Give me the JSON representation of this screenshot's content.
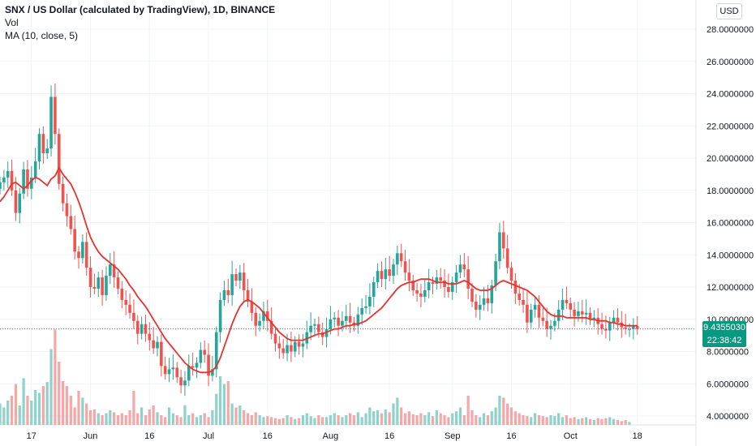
{
  "legend": {
    "symbol": "SNX / US Dollar (calculated by TradingView), 1D, BINANCE",
    "volume": "Vol",
    "ma": "MA (10, close, 5)"
  },
  "currency": "USD",
  "last_price": "9.4355030",
  "countdown": "22:38:42",
  "colors": {
    "up": "#26a69a",
    "down": "#ef5350",
    "vol_up": "#8fd2c9",
    "vol_down": "#f4a7a6",
    "ma": "#e8322e",
    "tag": "#089981"
  },
  "chart_data": {
    "type": "candlestick",
    "y_axis": {
      "ticks": [
        4,
        6,
        8,
        10,
        12,
        14,
        16,
        18,
        20,
        22,
        24,
        26,
        28
      ],
      "tick_labels": [
        "4.0000000",
        "6.0000000",
        "8.0000000",
        "10.0000000",
        "12.0000000",
        "14.0000000",
        "16.0000000",
        "18.0000000",
        "20.0000000",
        "22.0000000",
        "24.0000000",
        "26.0000000",
        "28.0000000"
      ],
      "range": [
        3.5,
        28.5
      ]
    },
    "x_axis": {
      "labels": [
        {
          "text": "17",
          "day": 8
        },
        {
          "text": "Jun",
          "day": 23
        },
        {
          "text": "16",
          "day": 38
        },
        {
          "text": "Jul",
          "day": 53
        },
        {
          "text": "16",
          "day": 68
        },
        {
          "text": "Aug",
          "day": 84
        },
        {
          "text": "16",
          "day": 99
        },
        {
          "text": "Sep",
          "day": 115
        },
        {
          "text": "16",
          "day": 130
        },
        {
          "text": "Oct",
          "day": 145
        },
        {
          "text": "18",
          "day": 162
        }
      ]
    },
    "close": [
      18.5,
      18.8,
      19.2,
      18.0,
      16.6,
      17.8,
      19.3,
      18.1,
      18.8,
      19.8,
      21.5,
      20.3,
      20.6,
      23.8,
      21.5,
      18.4,
      17.2,
      16.4,
      15.6,
      14.2,
      13.8,
      14.8,
      13.2,
      12.0,
      11.9,
      12.6,
      11.5,
      12.7,
      13.4,
      12.6,
      11.9,
      11.2,
      10.9,
      10.4,
      9.9,
      9.1,
      9.7,
      9.1,
      8.7,
      8.2,
      8.6,
      7.1,
      6.6,
      6.9,
      7.0,
      6.4,
      5.9,
      6.2,
      7.1,
      7.0,
      7.3,
      8.1,
      7.8,
      6.5,
      6.9,
      9.2,
      11.2,
      11.8,
      11.5,
      12.8,
      12.4,
      12.9,
      11.8,
      11.1,
      10.4,
      9.6,
      9.9,
      10.5,
      9.9,
      9.1,
      8.5,
      8.2,
      7.9,
      8.4,
      8.0,
      8.6,
      8.3,
      8.5,
      9.2,
      9.6,
      9.7,
      9.2,
      8.9,
      9.4,
      10.0,
      10.1,
      9.6,
      9.9,
      10.2,
      9.8,
      9.6,
      10.3,
      10.7,
      10.8,
      11.4,
      12.3,
      13.0,
      12.5,
      13.1,
      12.7,
      13.4,
      14.1,
      13.6,
      12.9,
      12.4,
      11.8,
      11.6,
      11.4,
      11.8,
      12.3,
      12.2,
      12.6,
      12.4,
      12.0,
      11.7,
      12.3,
      12.9,
      13.4,
      13.1,
      11.9,
      11.1,
      10.6,
      10.9,
      11.3,
      11.0,
      12.1,
      13.6,
      15.4,
      14.4,
      13.2,
      12.4,
      11.6,
      11.2,
      10.9,
      9.8,
      10.6,
      10.9,
      10.1,
      9.9,
      9.4,
      9.6,
      9.9,
      10.6,
      11.2,
      11.0,
      10.6,
      10.2,
      10.5,
      10.3,
      10.4,
      10.0,
      10.1,
      9.7,
      9.4,
      9.3,
      9.8,
      10.1,
      9.8,
      9.5,
      9.4,
      9.4,
      9.6,
      9.4
    ],
    "ma_values": [
      17.3,
      17.6,
      18.0,
      18.4,
      18.5,
      18.3,
      18.1,
      18.3,
      18.6,
      18.8,
      18.7,
      18.5,
      18.3,
      18.7,
      18.9,
      19.4,
      19.0,
      18.7,
      18.4,
      17.9,
      17.3,
      16.6,
      15.8,
      15.1,
      14.6,
      14.2,
      13.9,
      13.7,
      13.5,
      13.3,
      13.1,
      12.8,
      12.5,
      12.1,
      11.8,
      11.4,
      11.1,
      10.8,
      10.4,
      10.0,
      9.6,
      9.2,
      8.8,
      8.5,
      8.2,
      7.9,
      7.6,
      7.3,
      7.1,
      6.9,
      6.8,
      6.7,
      6.7,
      6.7,
      6.8,
      7.1,
      7.6,
      8.3,
      9.0,
      9.7,
      10.3,
      10.8,
      11.1,
      11.2,
      11.1,
      10.9,
      10.7,
      10.4,
      10.1,
      9.8,
      9.5,
      9.2,
      9.0,
      8.8,
      8.7,
      8.7,
      8.7,
      8.7,
      8.8,
      8.9,
      9.0,
      9.1,
      9.1,
      9.2,
      9.3,
      9.4,
      9.4,
      9.5,
      9.6,
      9.6,
      9.7,
      9.7,
      9.8,
      9.9,
      10.1,
      10.3,
      10.5,
      10.7,
      11.0,
      11.3,
      11.6,
      11.9,
      12.1,
      12.2,
      12.3,
      12.3,
      12.4,
      12.5,
      12.5,
      12.5,
      12.4,
      12.3,
      12.3,
      12.3,
      12.2,
      12.2,
      12.2,
      12.3,
      12.4,
      12.3,
      12.1,
      11.9,
      11.8,
      11.8,
      11.8,
      11.9,
      12.1,
      12.3,
      12.4,
      12.3,
      12.2,
      12.1,
      12.0,
      11.9,
      11.8,
      11.6,
      11.4,
      11.1,
      10.8,
      10.5,
      10.3,
      10.2,
      10.2,
      10.2,
      10.1,
      10.1,
      10.1,
      10.1,
      10.1,
      10.1,
      10.0,
      10.0,
      9.9,
      9.9,
      9.9,
      9.8,
      9.8,
      9.7,
      9.7,
      9.6,
      9.6,
      9.6,
      9.6
    ],
    "volume_levels": [
      0.22,
      0.18,
      0.25,
      0.3,
      0.42,
      0.2,
      0.48,
      0.3,
      0.25,
      0.36,
      0.33,
      0.4,
      0.44,
      0.78,
      0.98,
      0.65,
      0.45,
      0.4,
      0.3,
      0.18,
      0.35,
      0.28,
      0.22,
      0.15,
      0.16,
      0.12,
      0.1,
      0.12,
      0.15,
      0.13,
      0.1,
      0.12,
      0.1,
      0.15,
      0.35,
      0.12,
      0.18,
      0.1,
      0.16,
      0.2,
      0.13,
      0.1,
      0.08,
      0.18,
      0.12,
      0.1,
      0.08,
      0.2,
      0.1,
      0.12,
      0.08,
      0.1,
      0.12,
      0.08,
      0.15,
      0.32,
      0.5,
      0.42,
      0.45,
      0.22,
      0.18,
      0.2,
      0.15,
      0.12,
      0.1,
      0.13,
      0.1,
      0.08,
      0.09,
      0.08,
      0.07,
      0.06,
      0.07,
      0.1,
      0.08,
      0.06,
      0.07,
      0.1,
      0.12,
      0.09,
      0.07,
      0.1,
      0.08,
      0.08,
      0.1,
      0.12,
      0.1,
      0.08,
      0.1,
      0.12,
      0.1,
      0.13,
      0.08,
      0.12,
      0.18,
      0.14,
      0.15,
      0.12,
      0.16,
      0.13,
      0.22,
      0.28,
      0.18,
      0.12,
      0.14,
      0.11,
      0.1,
      0.12,
      0.1,
      0.13,
      0.09,
      0.15,
      0.12,
      0.1,
      0.08,
      0.12,
      0.14,
      0.18,
      0.1,
      0.3,
      0.15,
      0.1,
      0.08,
      0.12,
      0.1,
      0.14,
      0.18,
      0.3,
      0.28,
      0.22,
      0.18,
      0.14,
      0.12,
      0.1,
      0.09,
      0.08,
      0.12,
      0.1,
      0.09,
      0.08,
      0.1,
      0.09,
      0.12,
      0.08,
      0.1,
      0.07,
      0.08,
      0.06,
      0.07,
      0.08,
      0.06,
      0.05,
      0.07,
      0.06,
      0.07,
      0.08,
      0.06,
      0.05,
      0.04,
      0.05,
      0.03
    ]
  }
}
